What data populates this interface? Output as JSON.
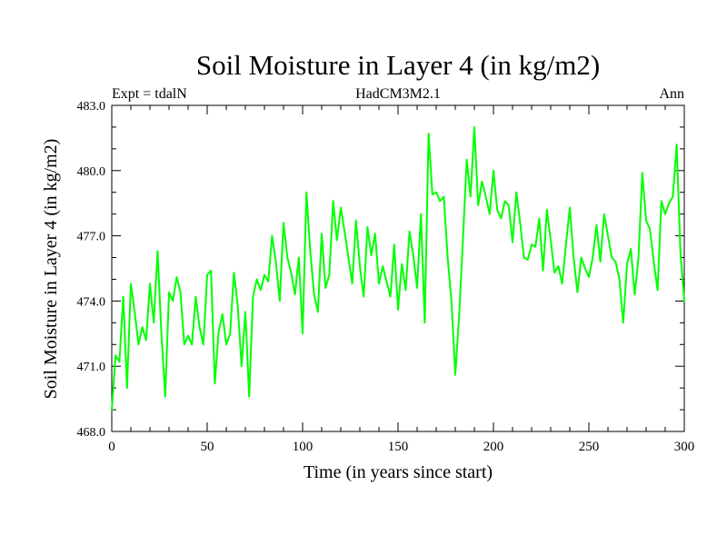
{
  "chart_data": {
    "type": "line",
    "title": "Soil Moisture in Layer 4 (in kg/m2)",
    "subtitle_left": "Expt = tdalN",
    "subtitle_center": "HadCM3M2.1",
    "subtitle_right": "Ann",
    "xlabel": "Time (in years since start)",
    "ylabel": "Soil Moisture in Layer 4 (in kg/m2)",
    "xlim": [
      0,
      300
    ],
    "ylim": [
      468,
      483
    ],
    "xticks": [
      0,
      50,
      100,
      150,
      200,
      250,
      300
    ],
    "xtick_labels": [
      "0",
      "50",
      "100",
      "150",
      "200",
      "250",
      "300"
    ],
    "yticks": [
      468,
      471,
      474,
      477,
      480,
      483
    ],
    "ytick_labels": [
      "468.0",
      "471.0",
      "474.0",
      "477.0",
      "480.0",
      "483.0"
    ],
    "grid": false,
    "series": [
      {
        "name": "Soil Moisture Layer 4",
        "color": "#00ff00",
        "x": [
          0,
          2,
          4,
          6,
          8,
          10,
          12,
          14,
          16,
          18,
          20,
          22,
          24,
          26,
          28,
          30,
          32,
          34,
          36,
          38,
          40,
          42,
          44,
          46,
          48,
          50,
          52,
          54,
          56,
          58,
          60,
          62,
          64,
          66,
          68,
          70,
          72,
          74,
          76,
          78,
          80,
          82,
          84,
          86,
          88,
          90,
          92,
          94,
          96,
          98,
          100,
          102,
          104,
          106,
          108,
          110,
          112,
          114,
          116,
          118,
          120,
          122,
          124,
          126,
          128,
          130,
          132,
          134,
          136,
          138,
          140,
          142,
          144,
          146,
          148,
          150,
          152,
          154,
          156,
          158,
          160,
          162,
          164,
          166,
          168,
          170,
          172,
          174,
          176,
          178,
          180,
          182,
          184,
          186,
          188,
          190,
          192,
          194,
          196,
          198,
          200,
          202,
          204,
          206,
          208,
          210,
          212,
          214,
          216,
          218,
          220,
          222,
          224,
          226,
          228,
          230,
          232,
          234,
          236,
          238,
          240,
          242,
          244,
          246,
          248,
          250,
          252,
          254,
          256,
          258,
          260,
          262,
          264,
          266,
          268,
          270,
          272,
          274,
          276,
          278,
          280,
          282,
          284,
          286,
          288,
          290,
          292,
          294,
          296,
          298,
          300
        ],
        "values": [
          469.0,
          471.5,
          471.2,
          474.2,
          470.0,
          474.8,
          473.5,
          472.0,
          472.8,
          472.2,
          474.8,
          473.0,
          476.3,
          472.5,
          469.6,
          474.4,
          474.0,
          475.1,
          474.4,
          472.0,
          472.4,
          472.0,
          474.2,
          472.8,
          472.0,
          475.2,
          475.4,
          470.2,
          472.6,
          473.4,
          472.0,
          472.5,
          475.3,
          473.8,
          471.0,
          473.5,
          469.6,
          474.2,
          475.0,
          474.5,
          475.2,
          474.9,
          477.0,
          475.8,
          474.0,
          477.6,
          476.0,
          475.3,
          474.3,
          476.0,
          472.5,
          479.0,
          476.3,
          474.3,
          473.5,
          477.1,
          474.6,
          475.2,
          478.6,
          476.8,
          478.3,
          477.2,
          476.0,
          474.8,
          477.7,
          475.6,
          474.2,
          477.4,
          476.1,
          477.1,
          474.8,
          475.6,
          474.9,
          474.2,
          476.6,
          473.6,
          475.7,
          474.5,
          477.2,
          476.1,
          474.6,
          478.0,
          473.0,
          481.7,
          478.9,
          479.0,
          478.6,
          478.8,
          476.0,
          474.0,
          470.6,
          473.3,
          476.8,
          480.5,
          478.8,
          482.0,
          478.4,
          479.5,
          478.8,
          478.0,
          480.0,
          478.2,
          477.8,
          478.6,
          478.4,
          476.7,
          479.0,
          477.6,
          476.0,
          475.9,
          476.6,
          476.5,
          477.8,
          475.4,
          478.2,
          476.8,
          475.3,
          475.6,
          474.8,
          476.6,
          478.3,
          476.0,
          474.4,
          476.0,
          475.5,
          475.1,
          476.0,
          477.5,
          475.8,
          478.0,
          477.0,
          476.0,
          475.8,
          475.0,
          473.0,
          475.7,
          476.4,
          474.3,
          476.0,
          479.9,
          477.7,
          477.3,
          475.8,
          474.5,
          478.6,
          478.0,
          478.5,
          478.8,
          481.2,
          476.2,
          474.0
        ]
      }
    ]
  }
}
